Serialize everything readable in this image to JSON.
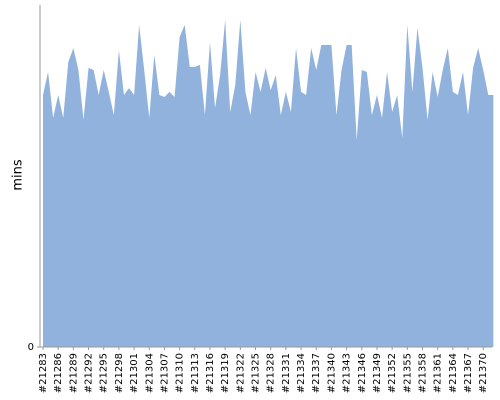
{
  "chart_data": {
    "type": "area",
    "y_label": "mins",
    "color": "#90b2dc",
    "ylim": [
      0,
      10
    ],
    "yticks": [
      0
    ],
    "categories": [
      "#21283",
      null,
      null,
      "#21286",
      null,
      null,
      "#21289",
      null,
      null,
      "#21292",
      null,
      null,
      "#21295",
      null,
      null,
      "#21298",
      null,
      null,
      "#21301",
      null,
      null,
      "#21304",
      null,
      null,
      "#21307",
      null,
      null,
      "#21310",
      null,
      null,
      "#21313",
      null,
      null,
      "#21316",
      null,
      null,
      "#21319",
      null,
      null,
      "#21322",
      null,
      null,
      "#21325",
      null,
      null,
      "#21328",
      null,
      null,
      "#21331",
      null,
      null,
      "#21334",
      null,
      null,
      "#21337",
      null,
      null,
      "#21340",
      null,
      null,
      "#21343",
      null,
      null,
      "#21346",
      null,
      null,
      "#21349",
      null,
      null,
      "#21352",
      null,
      null,
      "#21355",
      null,
      null,
      "#21358",
      null,
      null,
      "#21361",
      null,
      null,
      "#21364",
      null,
      null,
      "#21367",
      null,
      null,
      "#21370",
      null,
      null
    ],
    "values": [
      7.37,
      8.04,
      6.7,
      7.37,
      6.7,
      8.33,
      8.74,
      8.1,
      6.64,
      8.16,
      8.1,
      7.37,
      8.1,
      7.46,
      6.78,
      8.68,
      7.37,
      7.57,
      7.37,
      9.42,
      8.1,
      6.7,
      8.54,
      7.37,
      7.31,
      7.46,
      7.31,
      9.06,
      9.42,
      8.19,
      8.19,
      8.25,
      6.78,
      8.92,
      6.99,
      7.95,
      9.56,
      6.87,
      7.66,
      9.56,
      7.46,
      6.78,
      8.04,
      7.46,
      8.16,
      7.51,
      7.95,
      6.78,
      7.46,
      6.87,
      8.74,
      7.46,
      7.37,
      8.74,
      8.1,
      8.83,
      8.83,
      8.83,
      6.78,
      8.1,
      8.83,
      8.83,
      6.05,
      8.1,
      8.04,
      6.78,
      7.37,
      6.7,
      8.04,
      6.87,
      7.37,
      6.11,
      9.42,
      7.46,
      9.33,
      8.16,
      6.64,
      8.04,
      7.31,
      8.1,
      8.74,
      7.46,
      7.37,
      8.04,
      6.78,
      8.16,
      8.74,
      8.1,
      7.37,
      7.37
    ]
  }
}
